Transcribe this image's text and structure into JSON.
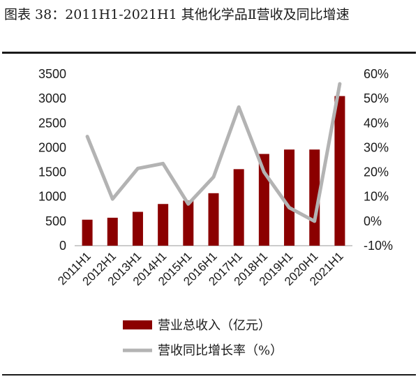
{
  "title": "图表 38：2011H1-2021H1 其他化学品Ⅱ营收及同比增速",
  "chart_data": {
    "type": "bar",
    "categories": [
      "2011H1",
      "2012H1",
      "2013H1",
      "2014H1",
      "2015H1",
      "2016H1",
      "2017H1",
      "2018H1",
      "2019H1",
      "2020H1",
      "2021H1"
    ],
    "series": [
      {
        "name": "营业总收入（亿元）",
        "type": "bar",
        "axis": "left",
        "color": "#8b0000",
        "values": [
          530,
          570,
          690,
          850,
          920,
          1070,
          1560,
          1870,
          1960,
          1960,
          3050
        ]
      },
      {
        "name": "营收同比增长率（%）",
        "type": "line",
        "axis": "right",
        "color": "#b3b3b3",
        "values": [
          34.5,
          9,
          21.5,
          23.5,
          7,
          18,
          46.5,
          20,
          5.5,
          0,
          56
        ]
      }
    ],
    "y_left": {
      "min": 0,
      "max": 3500,
      "ticks": [
        "0",
        "500",
        "1000",
        "1500",
        "2000",
        "2500",
        "3000",
        "3500"
      ]
    },
    "y_right": {
      "min": -10,
      "max": 60,
      "ticks": [
        "-10%",
        "0%",
        "10%",
        "20%",
        "30%",
        "40%",
        "50%",
        "60%"
      ]
    },
    "legend_position": "bottom",
    "grid": false
  }
}
